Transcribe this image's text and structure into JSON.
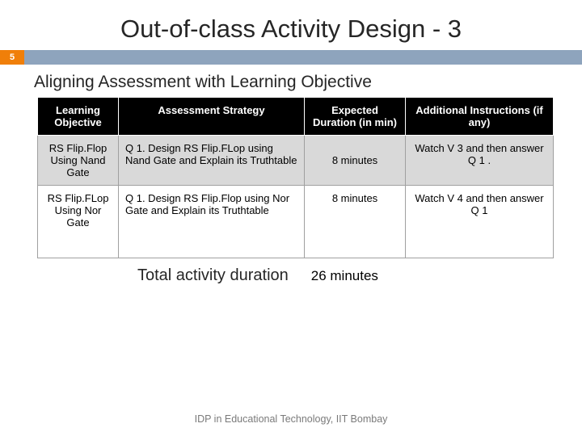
{
  "title": "Out-of-class Activity Design - 3",
  "page_number": "5",
  "subtitle": "Aligning Assessment with Learning Objective",
  "colors": {
    "accent_orange": "#f07f09",
    "bar_blue": "#8ea4bd",
    "header_bg": "#000000",
    "header_fg": "#ffffff",
    "row_grey": "#d9d9d9",
    "row_white": "#ffffff",
    "text_dark": "#262626",
    "footer_grey": "#7a7a7a"
  },
  "table": {
    "columns": [
      "Learning Objective",
      "Assessment Strategy",
      "Expected Duration (in min)",
      "Additional Instructions (if any)"
    ],
    "rows": [
      {
        "objective": "RS Flip.Flop Using Nand Gate",
        "strategy": "Q 1. Design RS Flip.FLop using Nand Gate and Explain its Truthtable",
        "duration": "8 minutes",
        "instructions": "Watch V 3 and then answer Q 1 ."
      },
      {
        "objective": "RS Flip.FLop Using Nor Gate",
        "strategy": "Q 1. Design RS Flip.Flop using Nor Gate and Explain its Truthtable",
        "duration": "8 minutes",
        "instructions": "Watch V 4 and then answer Q 1"
      }
    ]
  },
  "total": {
    "label": "Total activity duration",
    "value": "26 minutes"
  },
  "footer": "IDP in Educational Technology, IIT Bombay"
}
